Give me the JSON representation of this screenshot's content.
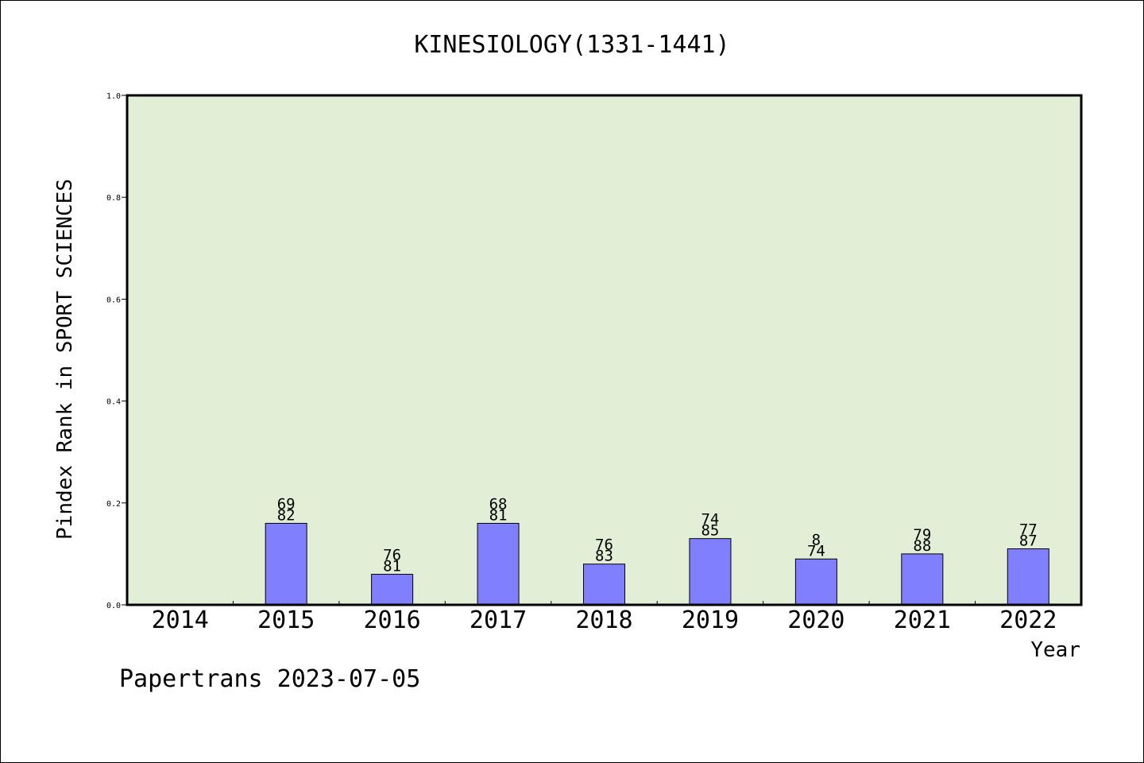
{
  "chart_data": {
    "type": "bar",
    "title": "KINESIOLOGY(1331-1441)",
    "xlabel": "Year",
    "ylabel": "Pindex Rank in SPORT SCIENCES",
    "footer": "Papertrans 2023-07-05",
    "categories": [
      "2014",
      "2015",
      "2016",
      "2017",
      "2018",
      "2019",
      "2020",
      "2021",
      "2022"
    ],
    "values": [
      0,
      0.16,
      0.06,
      0.16,
      0.08,
      0.13,
      0.09,
      0.1,
      0.11
    ],
    "labels_top": [
      "",
      "69",
      "76",
      "68",
      "76",
      "74",
      "8",
      "79",
      "77"
    ],
    "labels_bottom": [
      "",
      "82",
      "81",
      "81",
      "83",
      "85",
      "74",
      "88",
      "87"
    ],
    "ylim": [
      0,
      1.0
    ],
    "yticks": [
      "0.0",
      "0.2",
      "0.4",
      "0.6",
      "0.8",
      "1.0"
    ],
    "grid": false,
    "colors": {
      "plot_background": "#e2efd6",
      "bar_fill": "#8080ff",
      "bar_stroke": "#000000"
    }
  }
}
